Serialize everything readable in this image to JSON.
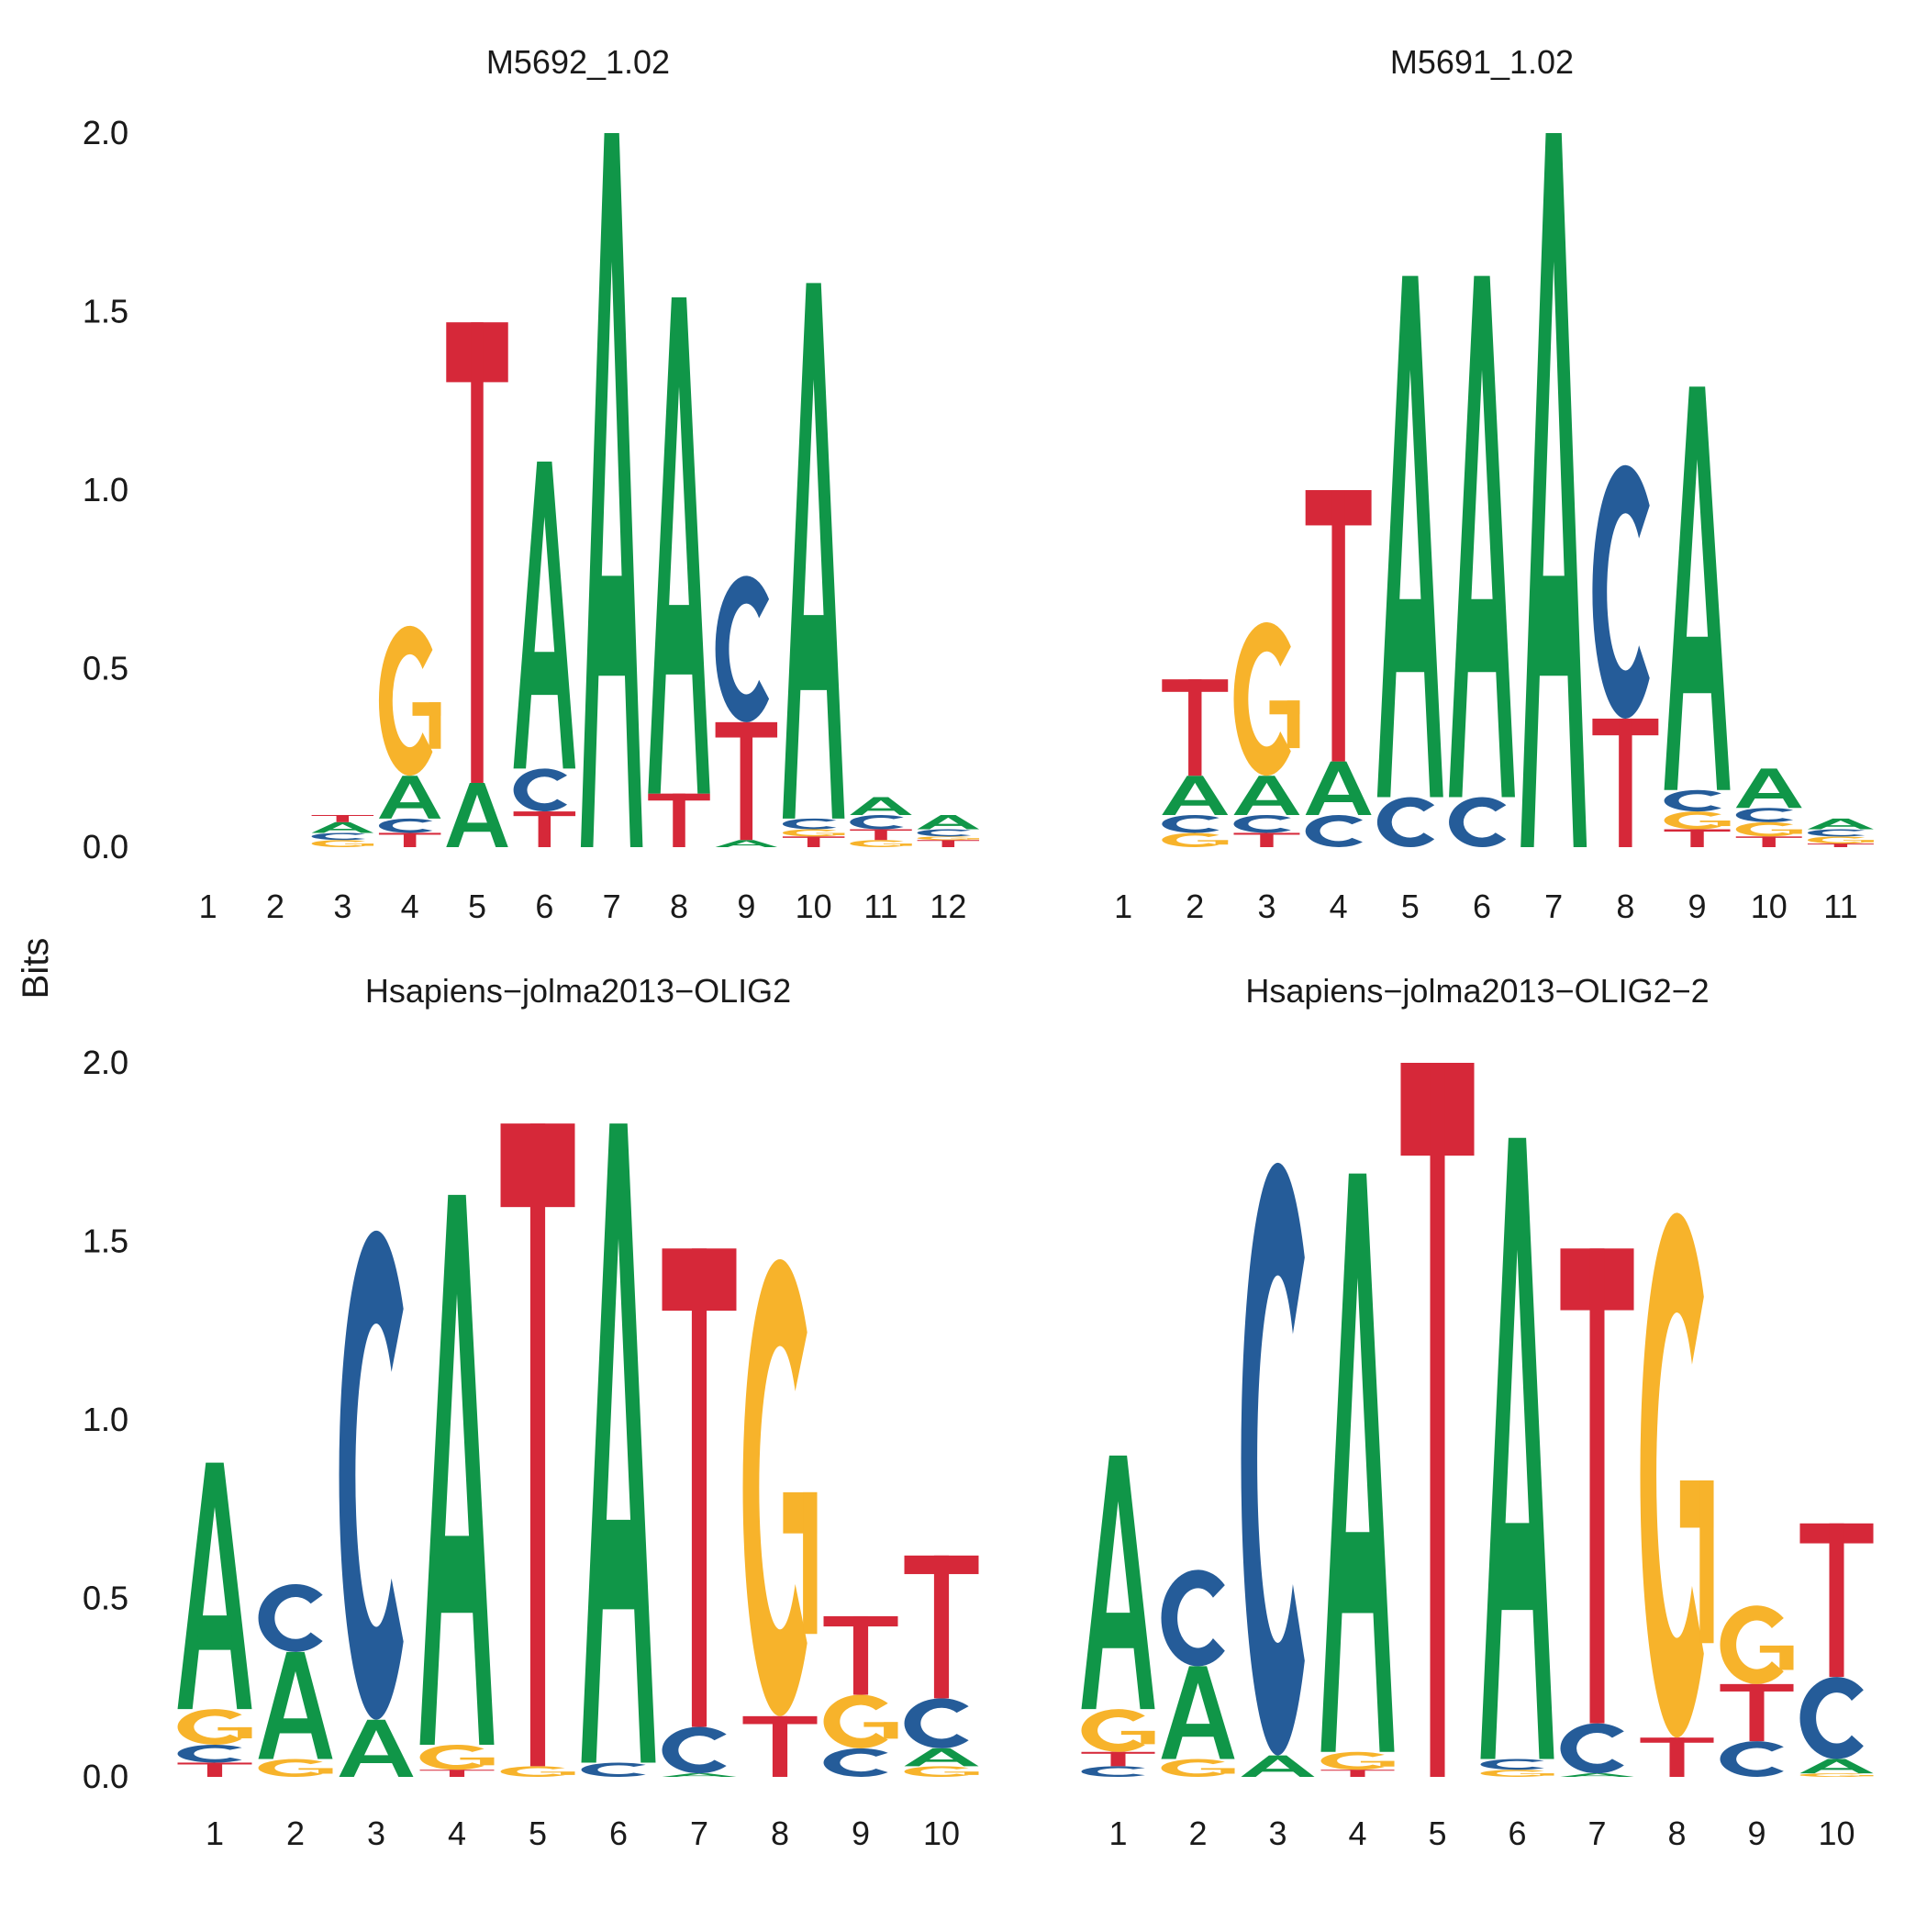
{
  "figure": {
    "ylabel": "Bits",
    "colors": {
      "A": "#109648",
      "C": "#255C99",
      "G": "#F7B32B",
      "T": "#D62839"
    }
  },
  "chart_data": [
    {
      "type": "sequence-logo",
      "title": "M5692_1.02",
      "ylim": [
        0,
        2
      ],
      "yticks": [
        "0.0",
        "0.5",
        "1.0",
        "1.5",
        "2.0"
      ],
      "positions": [
        "1",
        "2",
        "3",
        "4",
        "5",
        "6",
        "7",
        "8",
        "9",
        "10",
        "11",
        "12"
      ],
      "stacks": [
        [],
        [],
        [
          [
            "G",
            0.02
          ],
          [
            "C",
            0.02
          ],
          [
            "A",
            0.03
          ],
          [
            "T",
            0.02
          ]
        ],
        [
          [
            "T",
            0.04
          ],
          [
            "C",
            0.04
          ],
          [
            "A",
            0.12
          ],
          [
            "G",
            0.42
          ]
        ],
        [
          [
            "A",
            0.18
          ],
          [
            "T",
            1.29
          ]
        ],
        [
          [
            "T",
            0.1
          ],
          [
            "C",
            0.12
          ],
          [
            "A",
            0.86
          ]
        ],
        [
          [
            "A",
            2.0
          ]
        ],
        [
          [
            "T",
            0.15
          ],
          [
            "A",
            1.39
          ]
        ],
        [
          [
            "A",
            0.02
          ],
          [
            "T",
            0.33
          ],
          [
            "C",
            0.41
          ]
        ],
        [
          [
            "T",
            0.03
          ],
          [
            "G",
            0.02
          ],
          [
            "C",
            0.03
          ],
          [
            "A",
            1.5
          ]
        ],
        [
          [
            "G",
            0.02
          ],
          [
            "T",
            0.03
          ],
          [
            "C",
            0.04
          ],
          [
            "A",
            0.05
          ]
        ],
        [
          [
            "T",
            0.02
          ],
          [
            "G",
            0.01
          ],
          [
            "C",
            0.02
          ],
          [
            "A",
            0.04
          ]
        ]
      ]
    },
    {
      "type": "sequence-logo",
      "title": "M5691_1.02",
      "ylim": [
        0,
        2
      ],
      "yticks": [
        "0.0",
        "0.5",
        "1.0",
        "1.5",
        "2.0"
      ],
      "positions": [
        "1",
        "2",
        "3",
        "4",
        "5",
        "6",
        "7",
        "8",
        "9",
        "10",
        "11"
      ],
      "stacks": [
        [],
        [
          [
            "G",
            0.04
          ],
          [
            "C",
            0.05
          ],
          [
            "A",
            0.11
          ],
          [
            "T",
            0.27
          ]
        ],
        [
          [
            "T",
            0.04
          ],
          [
            "C",
            0.05
          ],
          [
            "A",
            0.11
          ],
          [
            "G",
            0.43
          ]
        ],
        [
          [
            "C",
            0.09
          ],
          [
            "A",
            0.15
          ],
          [
            "T",
            0.76
          ]
        ],
        [
          [
            "C",
            0.14
          ],
          [
            "A",
            1.46
          ]
        ],
        [
          [
            "C",
            0.14
          ],
          [
            "A",
            1.46
          ]
        ],
        [
          [
            "A",
            2.0
          ]
        ],
        [
          [
            "T",
            0.36
          ],
          [
            "C",
            0.71
          ]
        ],
        [
          [
            "T",
            0.05
          ],
          [
            "G",
            0.05
          ],
          [
            "C",
            0.06
          ],
          [
            "A",
            1.13
          ]
        ],
        [
          [
            "T",
            0.03
          ],
          [
            "G",
            0.04
          ],
          [
            "C",
            0.04
          ],
          [
            "A",
            0.11
          ]
        ],
        [
          [
            "T",
            0.01
          ],
          [
            "G",
            0.02
          ],
          [
            "C",
            0.02
          ],
          [
            "A",
            0.03
          ]
        ]
      ]
    },
    {
      "type": "sequence-logo",
      "title": "Hsapiens−jolma2013−OLIG2",
      "ylim": [
        0,
        2
      ],
      "yticks": [
        "0.0",
        "0.5",
        "1.0",
        "1.5",
        "2.0"
      ],
      "positions": [
        "1",
        "2",
        "3",
        "4",
        "5",
        "6",
        "7",
        "8",
        "9",
        "10"
      ],
      "stacks": [
        [
          [
            "T",
            0.04
          ],
          [
            "C",
            0.05
          ],
          [
            "G",
            0.1
          ],
          [
            "A",
            0.69
          ]
        ],
        [
          [
            "G",
            0.05
          ],
          [
            "A",
            0.3
          ],
          [
            "C",
            0.19
          ]
        ],
        [
          [
            "A",
            0.16
          ],
          [
            "C",
            1.37
          ]
        ],
        [
          [
            "T",
            0.02
          ],
          [
            "G",
            0.07
          ],
          [
            "A",
            1.54
          ]
        ],
        [
          [
            "G",
            0.03
          ],
          [
            "T",
            1.8
          ]
        ],
        [
          [
            "C",
            0.04
          ],
          [
            "A",
            1.79
          ]
        ],
        [
          [
            "A",
            0.01
          ],
          [
            "C",
            0.13
          ],
          [
            "T",
            1.34
          ]
        ],
        [
          [
            "T",
            0.17
          ],
          [
            "G",
            1.28
          ]
        ],
        [
          [
            "C",
            0.08
          ],
          [
            "G",
            0.15
          ],
          [
            "T",
            0.22
          ]
        ],
        [
          [
            "G",
            0.03
          ],
          [
            "A",
            0.05
          ],
          [
            "C",
            0.14
          ],
          [
            "T",
            0.4
          ]
        ]
      ]
    },
    {
      "type": "sequence-logo",
      "title": "Hsapiens−jolma2013−OLIG2−2",
      "ylim": [
        0,
        2
      ],
      "yticks": [
        "0.0",
        "0.5",
        "1.0",
        "1.5",
        "2.0"
      ],
      "positions": [
        "1",
        "2",
        "3",
        "4",
        "5",
        "6",
        "7",
        "8",
        "9",
        "10"
      ],
      "stacks": [
        [
          [
            "C",
            0.03
          ],
          [
            "T",
            0.04
          ],
          [
            "G",
            0.12
          ],
          [
            "A",
            0.71
          ]
        ],
        [
          [
            "G",
            0.05
          ],
          [
            "A",
            0.26
          ],
          [
            "C",
            0.27
          ]
        ],
        [
          [
            "A",
            0.06
          ],
          [
            "C",
            1.66
          ]
        ],
        [
          [
            "T",
            0.02
          ],
          [
            "G",
            0.05
          ],
          [
            "A",
            1.62
          ]
        ],
        [
          [
            "T",
            2.0
          ]
        ],
        [
          [
            "G",
            0.02
          ],
          [
            "C",
            0.03
          ],
          [
            "A",
            1.74
          ]
        ],
        [
          [
            "A",
            0.01
          ],
          [
            "C",
            0.14
          ],
          [
            "T",
            1.33
          ]
        ],
        [
          [
            "T",
            0.11
          ],
          [
            "G",
            1.47
          ]
        ],
        [
          [
            "C",
            0.1
          ],
          [
            "T",
            0.16
          ],
          [
            "G",
            0.22
          ]
        ],
        [
          [
            "G",
            0.01
          ],
          [
            "A",
            0.04
          ],
          [
            "C",
            0.23
          ],
          [
            "T",
            0.43
          ]
        ]
      ]
    }
  ]
}
